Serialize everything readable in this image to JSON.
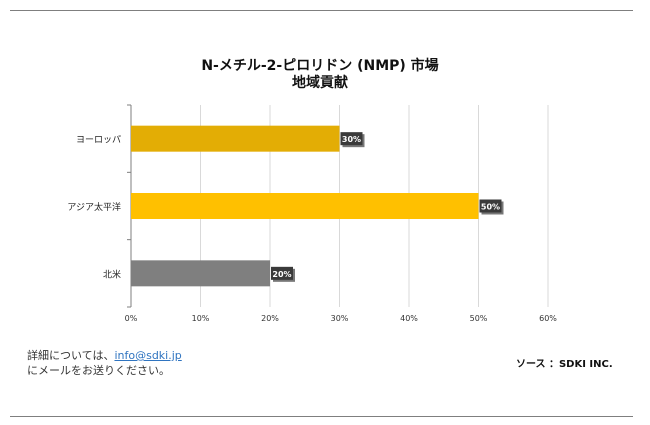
{
  "chart_data": {
    "type": "bar",
    "orientation": "horizontal",
    "title": [
      "N-メチル-2-ピロリドン (NMP) 市場",
      "地域貢献"
    ],
    "categories": [
      "ヨーロッパ",
      "アジア太平洋",
      "北米"
    ],
    "values": [
      30,
      50,
      20
    ],
    "data_labels": [
      "30%",
      "50%",
      "20%"
    ],
    "bar_colors": [
      "#e3ad05",
      "#ffc000",
      "#7f7f7f"
    ],
    "xlim": [
      0,
      60
    ],
    "x_ticks": [
      "0%",
      "10%",
      "20%",
      "30%",
      "40%",
      "50%",
      "60%"
    ],
    "grid": true,
    "xlabel": "",
    "ylabel": ""
  },
  "footer": {
    "contact_prefix": "詳細については、",
    "contact_email": "info@sdki.jp",
    "contact_suffix": "にメールをお送りください。",
    "source": "ソース ：SDKI INC."
  }
}
